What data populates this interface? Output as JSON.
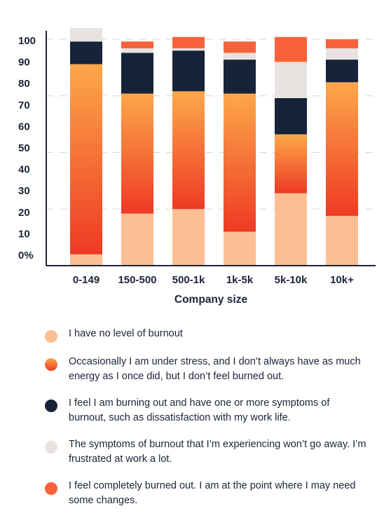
{
  "chart_data": {
    "type": "bar",
    "stacked": true,
    "xlabel": "Company size",
    "ylabel": "",
    "ylim": [
      0,
      100
    ],
    "yticks": [
      "0%",
      "10",
      "20",
      "30",
      "40",
      "50",
      "60",
      "70",
      "80",
      "90",
      "100"
    ],
    "categories": [
      "0-149",
      "150-500",
      "500-1k",
      "1k-5k",
      "5k-10k",
      "10k+"
    ],
    "grid": "dashed horizontal gridlines",
    "legend_position": "bottom",
    "series": [
      {
        "name": "I have no level of burnout",
        "color": "#fcbf94",
        "values": [
          5,
          23,
          25,
          15,
          32,
          22
        ]
      },
      {
        "name": "Occasionally I am under stress, and I don’t always have as much energy as I once did, but I don’t feel burned out.",
        "color": "#f25c23",
        "gradient_top": "#fca84a",
        "gradient_bottom": "#ee3a24",
        "values": [
          84,
          53,
          52,
          61,
          26,
          59
        ]
      },
      {
        "name": "I feel I am burning out and have one or more symptoms of burnout, such as dissatisfaction with my work life.",
        "color": "#172339",
        "values": [
          10,
          18,
          18,
          15,
          16,
          10
        ]
      },
      {
        "name": "The symptoms of burnout that I’m experiencing won’t go away. I’m frustrated at work a lot.",
        "color": "#e7e3e0",
        "values": [
          6,
          2,
          1,
          3,
          16,
          5
        ]
      },
      {
        "name": "I feel completely burned out. I am at the point where I may need some changes.",
        "color": "#f8623a",
        "values": [
          0,
          3,
          5,
          5,
          11,
          4
        ]
      }
    ]
  }
}
